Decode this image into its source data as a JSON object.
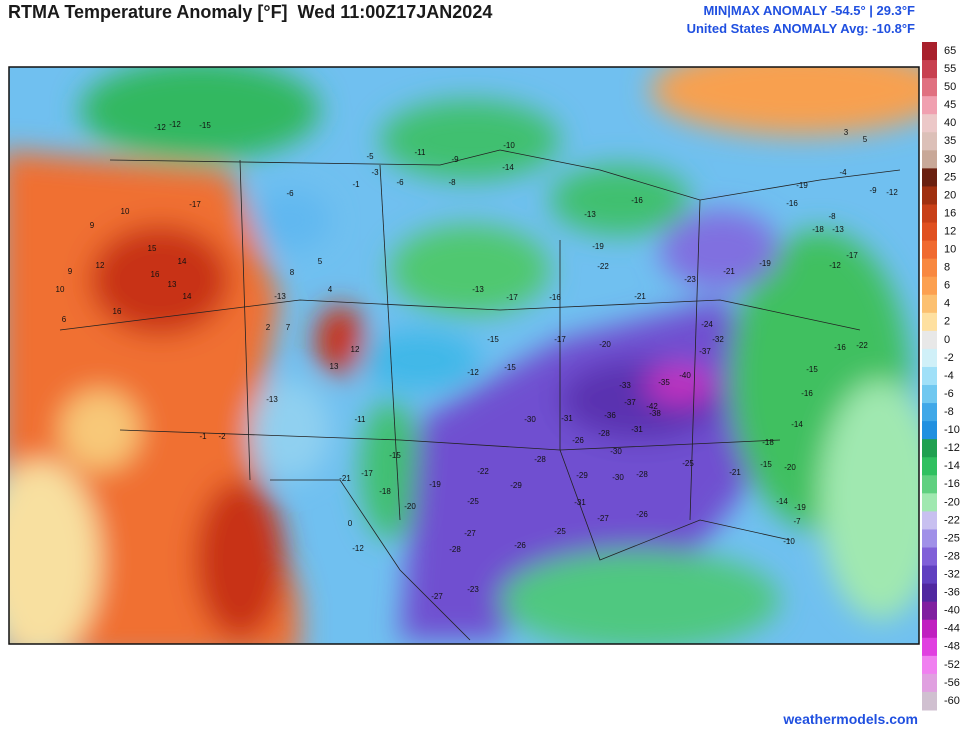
{
  "header": {
    "title": "RTMA Temperature Anomaly [°F]  Wed 11:00Z17JAN2024",
    "minmax": "MIN|MAX ANOMALY -54.5° | 29.3°F",
    "avg": "United States ANOMALY Avg: -10.8°F"
  },
  "legend": {
    "ticks": [
      65,
      55,
      50,
      45,
      40,
      35,
      30,
      25,
      20,
      16,
      12,
      10,
      8,
      6,
      4,
      2,
      0,
      -2,
      -4,
      -6,
      -8,
      -10,
      -12,
      -14,
      -16,
      -20,
      -22,
      -25,
      -28,
      -32,
      -36,
      -40,
      -44,
      -48,
      -52,
      -56,
      -60
    ],
    "colors": [
      "#a8202c",
      "#c84050",
      "#e07080",
      "#f0a0b0",
      "#ecc8c8",
      "#dcc0b8",
      "#c8a898",
      "#6a2010",
      "#a03010",
      "#c84018",
      "#e05020",
      "#f06a30",
      "#f88840",
      "#fca050",
      "#fcc070",
      "#fee0a0",
      "#e8e8e8",
      "#d0f0f8",
      "#a0e0f8",
      "#70c8f0",
      "#40a8e8",
      "#2090e0",
      "#20a050",
      "#30c060",
      "#60d080",
      "#a0e8b0",
      "#c8c0f0",
      "#a090e8",
      "#8060d8",
      "#6040c0",
      "#5028a0",
      "#8020a0",
      "#c020c0",
      "#e040e0",
      "#f080f0",
      "#e0a0e0",
      "#d0c0d0"
    ]
  },
  "map": {
    "labels": [
      15,
      14,
      16,
      13,
      14,
      9,
      10,
      12,
      16,
      6,
      9,
      10,
      -5,
      -3,
      -8,
      -11,
      -9,
      -14,
      -10,
      -6,
      -13,
      -16,
      -19,
      -22,
      -21,
      -23,
      -24,
      -32,
      -37,
      -40,
      -33,
      -35,
      -42,
      -37,
      -38,
      -31,
      -36,
      -30,
      -31,
      -26,
      -28,
      -30,
      -29,
      -30,
      -31,
      -27,
      -26,
      -25,
      -28,
      -25,
      -21,
      -20,
      -17,
      -15,
      -12,
      -13,
      -17,
      -16,
      -15,
      -25,
      -27,
      -28,
      -27,
      -23,
      -26,
      -20,
      -19,
      -22,
      -29,
      -28,
      -11,
      -15,
      -17,
      -21,
      -18,
      -12,
      -7,
      -10,
      -14,
      -19,
      -15,
      -20,
      -18,
      -14,
      -16,
      -15,
      -16,
      -22,
      -17,
      -12,
      -13,
      -18,
      -19,
      -21,
      -1,
      -6,
      5,
      8,
      4,
      -13,
      7,
      2,
      12,
      13,
      -1,
      -2,
      -13,
      0,
      -12,
      -15,
      -17,
      -12,
      -9,
      -12,
      -8,
      -16,
      -19,
      5,
      3,
      -4
    ]
  },
  "footer": "weathermodels.com"
}
